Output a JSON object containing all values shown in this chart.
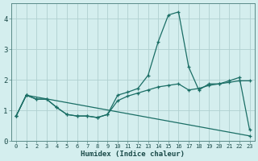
{
  "xlabel": "Humidex (Indice chaleur)",
  "background_color": "#d4eeee",
  "grid_color": "#b0d0d0",
  "line_color": "#1a6e65",
  "xlim": [
    -0.5,
    23.5
  ],
  "ylim": [
    0,
    4.5
  ],
  "xticks": [
    0,
    1,
    2,
    3,
    4,
    5,
    6,
    7,
    8,
    9,
    10,
    11,
    12,
    13,
    14,
    15,
    16,
    17,
    18,
    19,
    20,
    21,
    22,
    23
  ],
  "yticks": [
    0,
    1,
    2,
    3,
    4
  ],
  "line1_x": [
    0,
    1,
    2,
    3,
    4,
    5,
    6,
    7,
    8,
    9,
    10,
    11,
    12,
    13,
    14,
    15,
    16,
    17,
    18,
    19,
    20,
    21,
    22,
    23
  ],
  "line1_y": [
    0.82,
    1.5,
    1.37,
    1.37,
    1.1,
    0.87,
    0.82,
    0.82,
    0.77,
    0.87,
    1.5,
    1.6,
    1.72,
    2.15,
    3.25,
    4.12,
    4.22,
    2.42,
    1.67,
    1.87,
    1.87,
    1.97,
    2.08,
    0.37
  ],
  "line2_x": [
    0,
    1,
    2,
    3,
    4,
    5,
    6,
    7,
    8,
    9,
    10,
    11,
    12,
    13,
    14,
    15,
    16,
    17,
    18,
    19,
    20,
    21,
    22,
    23
  ],
  "line2_y": [
    0.82,
    1.5,
    1.37,
    1.37,
    1.1,
    0.87,
    0.82,
    0.82,
    0.77,
    0.87,
    1.32,
    1.47,
    1.57,
    1.67,
    1.77,
    1.82,
    1.87,
    1.67,
    1.72,
    1.82,
    1.87,
    1.92,
    1.97,
    1.97
  ],
  "line3_x": [
    0,
    1,
    23
  ],
  "line3_y": [
    0.82,
    1.5,
    0.17
  ]
}
